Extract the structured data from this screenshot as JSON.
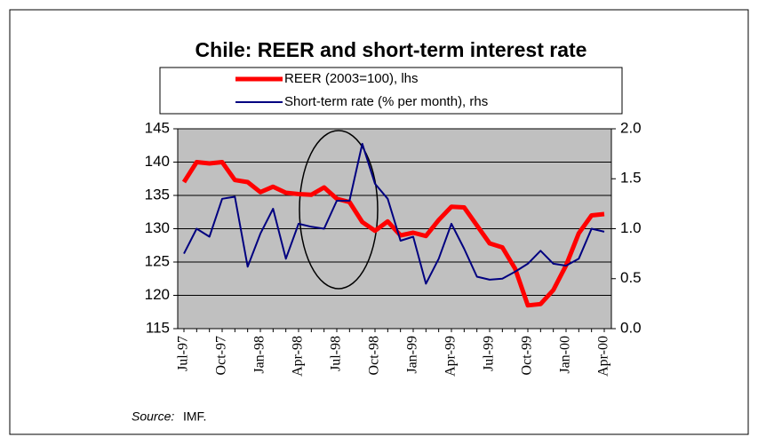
{
  "chart_data": {
    "type": "line",
    "title": "Chile: REER and short-term interest rate",
    "categories": [
      "Jul-97",
      null,
      null,
      "Oct-97",
      null,
      null,
      "Jan-98",
      null,
      null,
      "Apr-98",
      null,
      null,
      "Jul-98",
      null,
      null,
      "Oct-98",
      null,
      null,
      "Jan-99",
      null,
      null,
      "Apr-99",
      null,
      null,
      "Jul-99",
      null,
      null,
      "Oct-99",
      null,
      null,
      "Jan-00",
      null,
      null,
      "Apr-00"
    ],
    "series": [
      {
        "name": "REER (2003=100), lhs",
        "color": "#ff0000",
        "axis": "y",
        "values": [
          137,
          140,
          139.8,
          140,
          137.3,
          137,
          135.5,
          136.3,
          135.4,
          135.2,
          135.1,
          136.2,
          134.5,
          134,
          131,
          129.7,
          131.1,
          129,
          129.4,
          128.9,
          131.3,
          133.3,
          133.2,
          130.5,
          127.8,
          127.2,
          124,
          118.5,
          118.7,
          120.8,
          124.5,
          129.3,
          132,
          132.2
        ]
      },
      {
        "name": "Short-term rate (% per month), rhs",
        "color": "#000080",
        "axis": "y2",
        "values": [
          0.75,
          1.0,
          0.92,
          1.3,
          1.32,
          0.62,
          0.95,
          1.2,
          0.7,
          1.05,
          1.02,
          1.0,
          1.28,
          1.28,
          1.85,
          1.45,
          1.3,
          0.88,
          0.92,
          0.45,
          0.7,
          1.05,
          0.8,
          0.52,
          0.49,
          0.5,
          0.57,
          0.65,
          0.78,
          0.65,
          0.63,
          0.7,
          1.0,
          0.97
        ]
      }
    ],
    "ylim": [
      115,
      145
    ],
    "yticks": [
      115,
      120,
      125,
      130,
      135,
      140,
      145
    ],
    "y2lim": [
      0,
      2
    ],
    "y2ticks": [
      {
        "value": 0,
        "label": "0.0"
      },
      {
        "value": 0.5,
        "label": "0.5"
      },
      {
        "value": 1,
        "label": "1.0"
      },
      {
        "value": 1.5,
        "label": "1.5"
      },
      {
        "value": 2,
        "label": "2.0"
      }
    ],
    "grid": true,
    "source_label": "Source:",
    "source": "IMF."
  }
}
